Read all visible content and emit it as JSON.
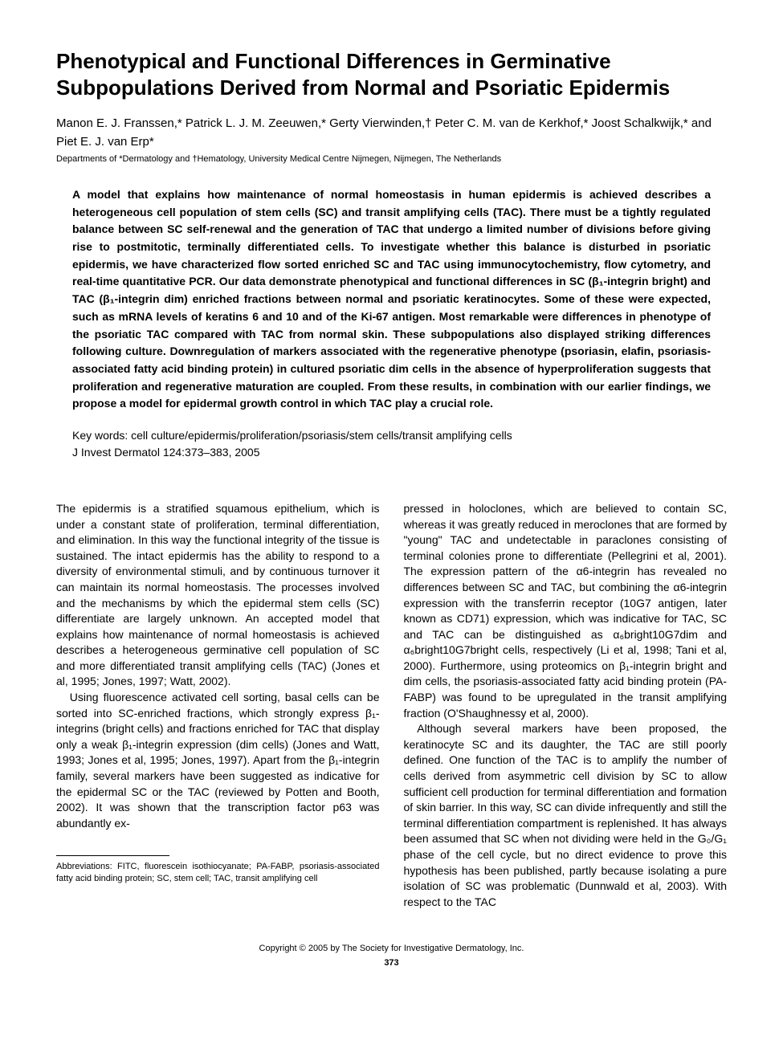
{
  "title": "Phenotypical and Functional Differences in Germinative Subpopulations Derived from Normal and Psoriatic Epidermis",
  "authors_html": "Manon E. J. Franssen,* Patrick L. J. M. Zeeuwen,* Gerty Vierwinden,† Peter C. M. van de Kerkhof,* Joost Schalkwijk,* and Piet E. J. van Erp*",
  "affiliations": "Departments of *Dermatology and †Hematology, University Medical Centre Nijmegen, Nijmegen, The Netherlands",
  "abstract": "A model that explains how maintenance of normal homeostasis in human epidermis is achieved describes a heterogeneous cell population of stem cells (SC) and transit amplifying cells (TAC). There must be a tightly regulated balance between SC self-renewal and the generation of TAC that undergo a limited number of divisions before giving rise to postmitotic, terminally differentiated cells. To investigate whether this balance is disturbed in psoriatic epidermis, we have characterized flow sorted enriched SC and TAC using immunocytochemistry, flow cytometry, and real-time quantitative PCR. Our data demonstrate phenotypical and functional differences in SC (β₁-integrin bright) and TAC (β₁-integrin dim) enriched fractions between normal and psoriatic keratinocytes. Some of these were expected, such as mRNA levels of keratins 6 and 10 and of the Ki-67 antigen. Most remarkable were differences in phenotype of the psoriatic TAC compared with TAC from normal skin. These subpopulations also displayed striking differences following culture. Downregulation of markers associated with the regenerative phenotype (psoriasin, elafin, psoriasis-associated fatty acid binding protein) in cultured psoriatic dim cells in the absence of hyperproliferation suggests that proliferation and regenerative maturation are coupled. From these results, in combination with our earlier findings, we propose a model for epidermal growth control in which TAC play a crucial role.",
  "keywords": "Key words:  cell culture/epidermis/proliferation/psoriasis/stem cells/transit amplifying cells",
  "journal_ref": "J Invest Dermatol 124:373–383, 2005",
  "body": {
    "col1": {
      "p1": "The epidermis is a stratified squamous epithelium, which is under a constant state of proliferation, terminal differentiation, and elimination. In this way the functional integrity of the tissue is sustained. The intact epidermis has the ability to respond to a diversity of environmental stimuli, and by continuous turnover it can maintain its normal homeostasis. The processes involved and the mechanisms by which the epidermal stem cells (SC) differentiate are largely unknown. An accepted model that explains how maintenance of normal homeostasis is achieved describes a heterogeneous germinative cell population of SC and more differentiated transit amplifying cells (TAC) (Jones et al, 1995; Jones, 1997; Watt, 2002).",
      "p2": "Using fluorescence activated cell sorting, basal cells can be sorted into SC-enriched fractions, which strongly express β₁-integrins (bright cells) and fractions enriched for TAC that display only a weak β₁-integrin expression (dim cells) (Jones and Watt, 1993; Jones et al, 1995; Jones, 1997). Apart from the β₁-integrin family, several markers have been suggested as indicative for the epidermal SC or the TAC (reviewed by Potten and Booth, 2002). It was shown that the transcription factor p63 was abundantly ex-"
    },
    "col2": {
      "p1": "pressed in holoclones, which are believed to contain SC, whereas it was greatly reduced in meroclones that are formed by \"young\" TAC and undetectable in paraclones consisting of terminal colonies prone to differentiate (Pellegrini et al, 2001). The expression pattern of the α6-integrin has revealed no differences between SC and TAC, but combining the α6-integrin expression with the transferrin receptor (10G7 antigen, later known as CD71) expression, which was indicative for TAC, SC and TAC can be distinguished as α₆bright10G7dim and α₆bright10G7bright cells, respectively (Li et al, 1998; Tani et al, 2000). Furthermore, using proteomics on β₁-integrin bright and dim cells, the psoriasis-associated fatty acid binding protein (PA-FABP) was found to be upregulated in the transit amplifying fraction (O'Shaughnessy et al, 2000).",
      "p2": "Although several markers have been proposed, the keratinocyte SC and its daughter, the TAC are still poorly defined. One function of the TAC is to amplify the number of cells derived from asymmetric cell division by SC to allow sufficient cell production for terminal differentiation and formation of skin barrier. In this way, SC can divide infrequently and still the terminal differentiation compartment is replenished. It has always been assumed that SC when not dividing were held in the G₀/G₁ phase of the cell cycle, but no direct evidence to prove this hypothesis has been published, partly because isolating a pure isolation of SC was problematic (Dunnwald et al, 2003). With respect to the TAC"
    }
  },
  "footnote": "Abbreviations: FITC, fluorescein isothiocyanate; PA-FABP, psoriasis-associated fatty acid binding protein; SC, stem cell; TAC, transit amplifying cell",
  "footer": {
    "copyright": "Copyright © 2005 by The Society for Investigative Dermatology, Inc.",
    "page": "373"
  }
}
